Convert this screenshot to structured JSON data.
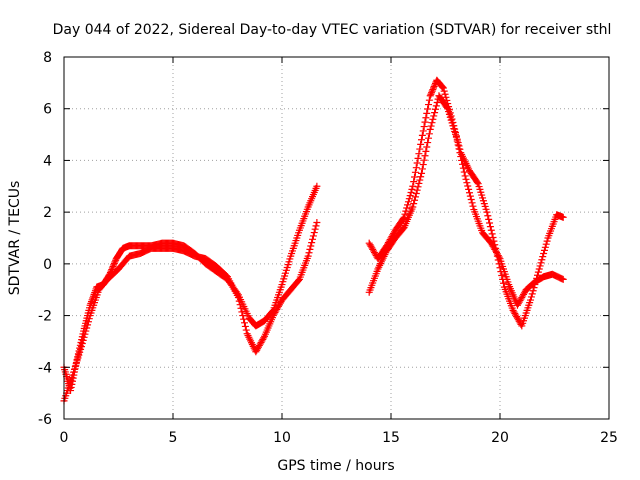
{
  "chart_data": {
    "type": "scatter",
    "title": "Day 044 of 2022, Sidereal Day-to-day VTEC variation (SDTVAR) for receiver sthl",
    "xlabel": "GPS time / hours",
    "ylabel": "SDTVAR / TECUs",
    "xlim": [
      0,
      25
    ],
    "ylim": [
      -6,
      8
    ],
    "xticks": [
      0,
      5,
      10,
      15,
      20,
      25
    ],
    "yticks": [
      -6,
      -4,
      -2,
      0,
      2,
      4,
      6,
      8
    ],
    "grid": true,
    "marker": "+",
    "series": [
      {
        "name": "SDTVAR",
        "color": "#ff0000",
        "tracks": [
          {
            "x": [
              0.0,
              0.3,
              0.6,
              0.9,
              1.2,
              1.5,
              1.8,
              2.1,
              2.4,
              2.7,
              3.0,
              3.5,
              4.0,
              4.5,
              5.0,
              5.5,
              6.0,
              6.5,
              7.0,
              7.5,
              8.0,
              8.5,
              8.8,
              9.2,
              9.6,
              10.0,
              10.4,
              10.8,
              11.2,
              11.6
            ],
            "y": [
              -4.0,
              -4.9,
              -3.7,
              -2.6,
              -1.6,
              -0.9,
              -0.8,
              -0.4,
              0.2,
              0.6,
              0.7,
              0.7,
              0.7,
              0.8,
              0.8,
              0.7,
              0.4,
              0.0,
              -0.3,
              -0.6,
              -1.2,
              -2.1,
              -2.4,
              -2.2,
              -1.8,
              -0.8,
              0.3,
              1.3,
              2.2,
              3.0
            ]
          },
          {
            "x": [
              0.0,
              0.4,
              0.8,
              1.2,
              1.6,
              2.0,
              2.5,
              3.0,
              3.5,
              4.0,
              4.5,
              5.0,
              5.5,
              6.0,
              6.5,
              7.0,
              7.5,
              8.0,
              8.4,
              8.8,
              9.2,
              9.6,
              10.0,
              10.4,
              10.8,
              11.2,
              11.6
            ],
            "y": [
              -5.3,
              -4.3,
              -3.2,
              -2.0,
              -1.0,
              -0.6,
              -0.2,
              0.3,
              0.4,
              0.6,
              0.6,
              0.6,
              0.5,
              0.3,
              0.2,
              -0.1,
              -0.5,
              -1.3,
              -2.7,
              -3.4,
              -2.8,
              -2.0,
              -1.4,
              -1.0,
              -0.6,
              0.3,
              1.6
            ]
          },
          {
            "x": [
              14.0,
              14.4,
              14.8,
              15.2,
              15.6,
              16.0,
              16.4,
              16.8,
              17.1,
              17.4,
              17.8,
              18.2,
              18.6,
              19.0,
              19.4,
              19.8,
              20.2,
              20.6,
              21.0,
              21.4,
              21.8,
              22.2,
              22.6,
              22.9
            ],
            "y": [
              0.8,
              0.2,
              0.7,
              1.3,
              1.8,
              3.0,
              4.8,
              6.5,
              7.1,
              6.8,
              5.6,
              4.3,
              3.6,
              3.1,
              2.0,
              0.6,
              -0.9,
              -1.8,
              -2.4,
              -1.4,
              -0.2,
              1.0,
              1.9,
              1.8
            ]
          },
          {
            "x": [
              14.0,
              14.4,
              14.8,
              15.2,
              15.6,
              16.0,
              16.4,
              16.8,
              17.2,
              17.6,
              18.0,
              18.4,
              18.8,
              19.2,
              19.6,
              20.0,
              20.4,
              20.8,
              21.2,
              21.6,
              22.0,
              22.4,
              22.9
            ],
            "y": [
              -1.1,
              -0.2,
              0.5,
              1.0,
              1.4,
              2.2,
              3.5,
              5.2,
              6.5,
              6.0,
              4.9,
              3.4,
              2.1,
              1.2,
              0.8,
              0.2,
              -0.8,
              -1.6,
              -1.0,
              -0.7,
              -0.5,
              -0.4,
              -0.6
            ]
          }
        ]
      }
    ]
  }
}
